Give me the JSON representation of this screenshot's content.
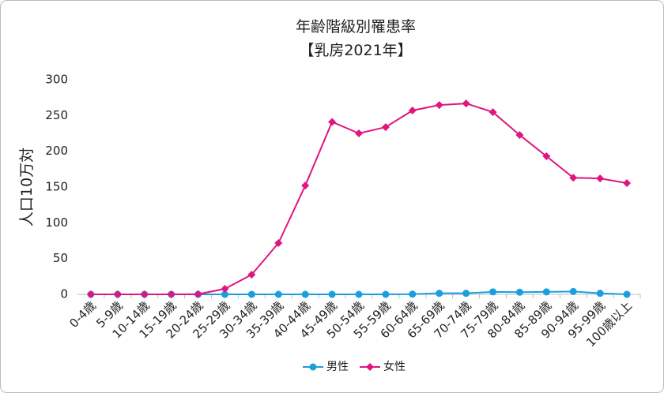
{
  "chart_data": {
    "type": "line",
    "title": "年齢階級別罹患率",
    "subtitle": "【乳房2021年】",
    "y_label": "人口10万対",
    "categories": [
      "0-4歳",
      "5-9歳",
      "10-14歳",
      "15-19歳",
      "20-24歳",
      "25-29歳",
      "30-34歳",
      "35-39歳",
      "40-44歳",
      "45-49歳",
      "50-54歳",
      "55-59歳",
      "60-64歳",
      "65-69歳",
      "70-74歳",
      "75-79歳",
      "80-84歳",
      "85-89歳",
      "90-94歳",
      "95-99歳",
      "100歳以上"
    ],
    "series": [
      {
        "name": "男性",
        "color": "#1a9fdc",
        "marker": "circle",
        "values": [
          0,
          0,
          0,
          0,
          0,
          0,
          0,
          0,
          0,
          0,
          0,
          0,
          0.3,
          1.5,
          1.5,
          3.5,
          3,
          3.5,
          4,
          1.5,
          0
        ]
      },
      {
        "name": "女性",
        "color": "#e0157f",
        "marker": "diamond",
        "values": [
          0,
          0,
          0,
          0,
          0.3,
          7.7,
          27.6,
          71.7,
          152,
          241,
          225,
          233.7,
          257,
          264.6,
          266.8,
          254.7,
          222.7,
          193,
          163,
          162,
          155.5
        ]
      }
    ],
    "ylim": [
      0,
      300
    ],
    "yticks": [
      0,
      50,
      100,
      150,
      200,
      250,
      300
    ],
    "grid": false,
    "legend": "bottom"
  }
}
